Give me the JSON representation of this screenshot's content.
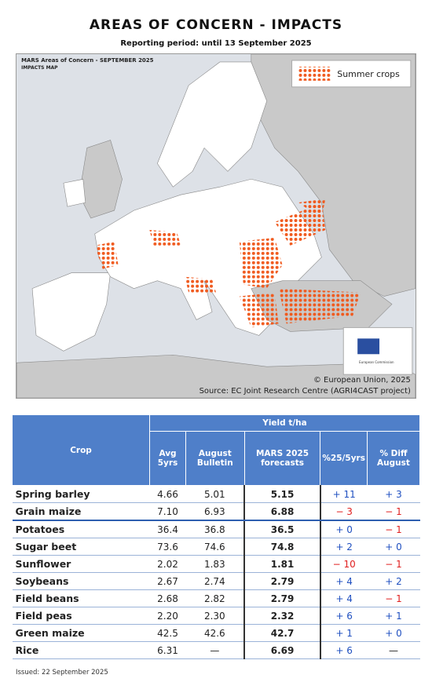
{
  "header": {
    "title": "AREAS OF CONCERN - IMPACTS",
    "subtitle": "Reporting period: until 13 September 2025"
  },
  "map": {
    "title": "MARS Areas of Concern - SEPTEMBER 2025",
    "subtitle": "IMPACTS MAP",
    "legend": "Summer crops",
    "copyright": "© European Union, 2025",
    "source": "Source: EC Joint Research Centre (AGRI4CAST project)",
    "logo": "European Commission"
  },
  "table": {
    "group_header": "Yield t/ha",
    "headers": [
      "Crop",
      "Avg 5yrs",
      "August Bulletin",
      "MARS 2025 forecasts",
      "%25/5yrs",
      "% Diff August"
    ],
    "rows": [
      [
        "Spring barley",
        "4.66",
        "5.01",
        "5.15",
        "+ 11",
        "+ 3"
      ],
      [
        "Grain maize",
        "7.10",
        "6.93",
        "6.88",
        "− 3",
        "− 1"
      ],
      [
        "Potatoes",
        "36.4",
        "36.8",
        "36.5",
        "+ 0",
        "− 1"
      ],
      [
        "Sugar beet",
        "73.6",
        "74.6",
        "74.8",
        "+ 2",
        "+ 0"
      ],
      [
        "Sunflower",
        "2.02",
        "1.83",
        "1.81",
        "− 10",
        "− 1"
      ],
      [
        "Soybeans",
        "2.67",
        "2.74",
        "2.79",
        "+ 4",
        "+ 2"
      ],
      [
        "Field beans",
        "2.68",
        "2.82",
        "2.79",
        "+ 4",
        "− 1"
      ],
      [
        "Field peas",
        "2.20",
        "2.30",
        "2.32",
        "+ 6",
        "+ 1"
      ],
      [
        "Green maize",
        "42.5",
        "42.6",
        "42.7",
        "+ 1",
        "+ 0"
      ],
      [
        "Rice",
        "6.31",
        "—",
        "6.69",
        "+ 6",
        "—"
      ]
    ]
  },
  "footer": "Issued: 22 September 2025"
}
